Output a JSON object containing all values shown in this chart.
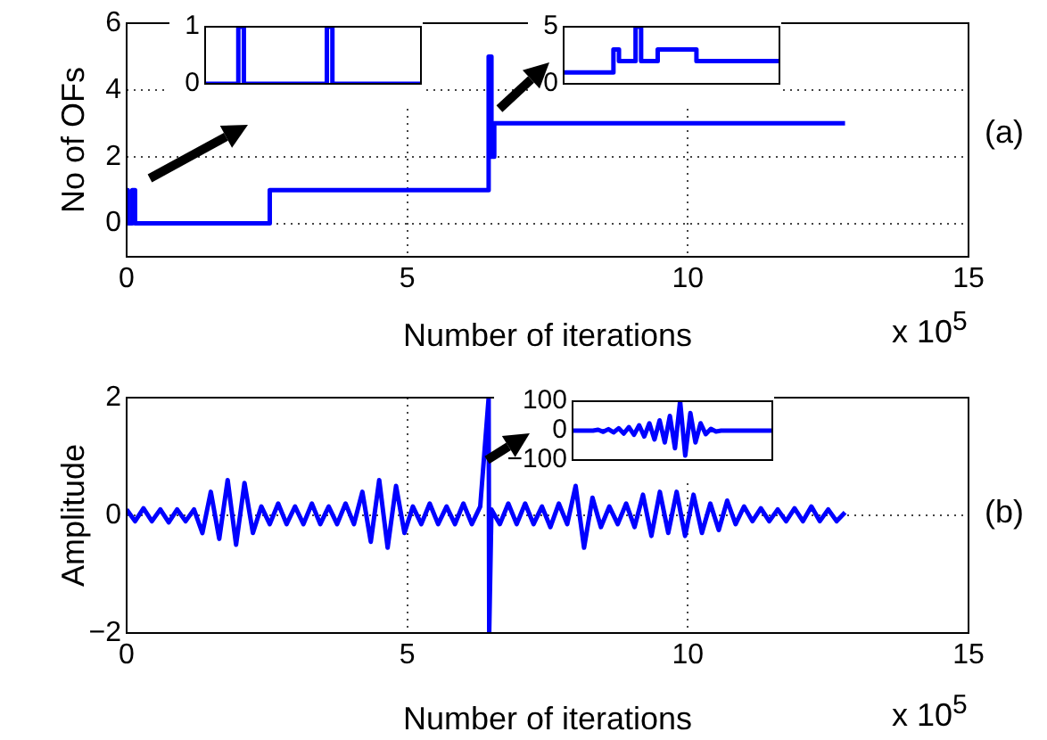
{
  "chart_data": [
    {
      "type": "step",
      "xlabel": "Number of iterations",
      "ylabel": "No of OFs",
      "x": [
        0,
        0.02,
        0.1,
        0.15,
        0.2,
        2.55,
        6.45,
        6.5,
        6.55,
        12.8
      ],
      "values": [
        1,
        0,
        1,
        0,
        0,
        1,
        5,
        2,
        3,
        3
      ],
      "color": "#0000ff",
      "xlim": [
        0,
        15
      ],
      "xticks": [
        0,
        5,
        10,
        15
      ],
      "ylim": [
        -1,
        6
      ],
      "yticks": [
        0,
        2,
        4,
        6
      ],
      "grid": true,
      "marker": "none",
      "annotations": [
        "x 10$^{5}$",
        "(a)"
      ]
    },
    {
      "type": "step",
      "categories": [
        null,
        null,
        null,
        null,
        null,
        null,
        null,
        null,
        null,
        null,
        null,
        null,
        null,
        null,
        null,
        null,
        null,
        null,
        null,
        null,
        null,
        null,
        null,
        null,
        null,
        null,
        null,
        null,
        null,
        null,
        null,
        null,
        null,
        null,
        null,
        null,
        null,
        null,
        null,
        null
      ],
      "values": [
        0,
        0,
        0,
        0,
        0,
        0,
        1,
        0,
        0,
        0,
        0,
        0,
        0,
        0,
        0,
        0,
        0,
        0,
        0,
        0,
        0,
        0,
        1,
        0,
        0,
        0,
        0,
        0,
        0,
        0,
        0,
        0,
        0,
        0,
        0,
        0,
        0,
        0,
        0,
        0
      ],
      "color": "#0000ff",
      "ylim": [
        0,
        1
      ],
      "yticks": [
        0,
        1
      ],
      "tick_labels": "y",
      "marker": "none"
    },
    {
      "type": "step",
      "categories": [
        null,
        null,
        null,
        null,
        null,
        null,
        null,
        null,
        null,
        null,
        null,
        null,
        null,
        null,
        null,
        null,
        null,
        null,
        null,
        null,
        null,
        null,
        null,
        null,
        null,
        null,
        null,
        null,
        null,
        null,
        null,
        null,
        null,
        null,
        null,
        null,
        null,
        null,
        null,
        null
      ],
      "values": [
        1,
        1,
        1,
        1,
        1,
        1,
        1,
        1,
        1,
        3,
        2,
        2,
        2,
        5,
        2,
        2,
        2,
        3,
        3,
        3,
        3,
        3,
        3,
        3,
        2,
        2,
        2,
        2,
        2,
        2,
        2,
        2,
        2,
        2,
        2,
        2,
        2,
        2,
        2,
        2
      ],
      "color": "#0000ff",
      "ylim": [
        0,
        5
      ],
      "yticks": [
        0,
        5
      ],
      "tick_labels": "y",
      "marker": "none"
    },
    {
      "type": "line",
      "xlabel": "Number of iterations",
      "ylabel": "Amplitude",
      "x": [
        0,
        0.15,
        0.3,
        0.45,
        0.6,
        0.75,
        0.9,
        1.05,
        1.2,
        1.35,
        1.5,
        1.65,
        1.8,
        1.95,
        2.1,
        2.25,
        2.4,
        2.55,
        2.7,
        2.85,
        3.0,
        3.15,
        3.3,
        3.45,
        3.6,
        3.75,
        3.9,
        4.05,
        4.2,
        4.35,
        4.5,
        4.65,
        4.8,
        4.95,
        5.1,
        5.25,
        5.4,
        5.55,
        5.7,
        5.85,
        6.0,
        6.15,
        6.3,
        6.45,
        6.46,
        6.5,
        6.65,
        6.8,
        6.95,
        7.1,
        7.25,
        7.4,
        7.55,
        7.7,
        7.85,
        8.0,
        8.15,
        8.3,
        8.45,
        8.6,
        8.75,
        8.9,
        9.05,
        9.2,
        9.35,
        9.5,
        9.65,
        9.8,
        9.95,
        10.1,
        10.25,
        10.4,
        10.55,
        10.7,
        10.85,
        11.0,
        11.15,
        11.3,
        11.45,
        11.6,
        11.75,
        11.9,
        12.05,
        12.2,
        12.35,
        12.5,
        12.65,
        12.8
      ],
      "values": [
        0.1,
        -0.1,
        0.12,
        -0.1,
        0.1,
        -0.12,
        0.1,
        -0.1,
        0.1,
        -0.3,
        0.4,
        -0.4,
        0.6,
        -0.5,
        0.55,
        -0.3,
        0.15,
        -0.15,
        0.2,
        -0.15,
        0.15,
        -0.15,
        0.2,
        -0.15,
        0.15,
        -0.15,
        0.2,
        -0.15,
        0.4,
        -0.45,
        0.6,
        -0.55,
        0.5,
        -0.3,
        0.15,
        -0.15,
        0.2,
        -0.15,
        0.15,
        -0.15,
        0.2,
        -0.15,
        0.15,
        2,
        -2,
        0.1,
        -0.15,
        0.2,
        -0.15,
        0.2,
        -0.15,
        0.15,
        -0.2,
        0.2,
        -0.15,
        0.5,
        -0.55,
        0.3,
        -0.2,
        0.15,
        -0.15,
        0.2,
        -0.2,
        0.35,
        -0.35,
        0.4,
        -0.3,
        0.4,
        -0.35,
        0.35,
        -0.3,
        0.2,
        -0.25,
        0.25,
        -0.15,
        0.15,
        -0.1,
        0.12,
        -0.1,
        0.1,
        -0.1,
        0.12,
        -0.1,
        0.15,
        -0.1,
        0.1,
        -0.1,
        0.05
      ],
      "color": "#0000ff",
      "xlim": [
        0,
        15
      ],
      "xticks": [
        0,
        5,
        10,
        15
      ],
      "ylim": [
        -2,
        2
      ],
      "yticks": [
        -2,
        0,
        2
      ],
      "grid": true,
      "marker": "none",
      "annotations": [
        "x 10$^{5}$",
        "(b)"
      ]
    },
    {
      "type": "line",
      "categories": [
        null,
        null,
        null,
        null,
        null,
        null,
        null,
        null,
        null,
        null,
        null,
        null,
        null,
        null,
        null,
        null,
        null,
        null,
        null,
        null,
        null,
        null,
        null,
        null,
        null,
        null,
        null,
        null,
        null,
        null,
        null,
        null,
        null,
        null,
        null,
        null,
        null,
        null,
        null,
        null
      ],
      "values": [
        0,
        0,
        0,
        0,
        0,
        3,
        -4,
        5,
        -6,
        8,
        -10,
        12,
        -14,
        18,
        -20,
        25,
        -30,
        35,
        -40,
        50,
        -60,
        100,
        -85,
        60,
        -40,
        25,
        -12,
        6,
        -3,
        0,
        0,
        0,
        0,
        0,
        0,
        0,
        0,
        0,
        0,
        0
      ],
      "color": "#0000ff",
      "ylim": [
        -100,
        100
      ],
      "yticks": [
        -100,
        0,
        100
      ],
      "tick_labels": "y",
      "marker": "none"
    }
  ]
}
